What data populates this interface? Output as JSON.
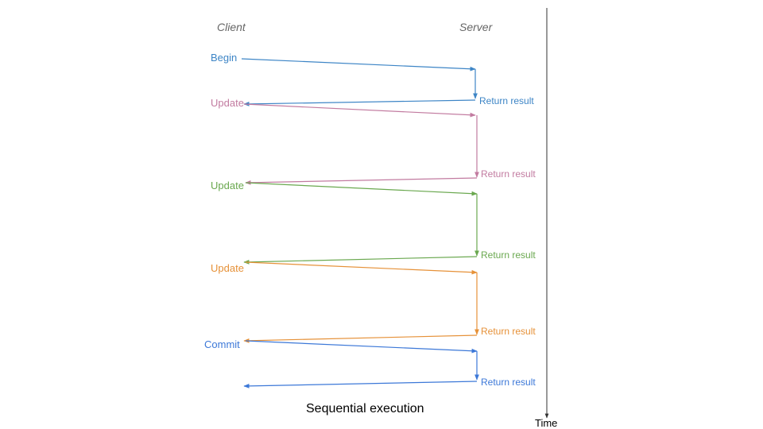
{
  "headers": {
    "client": "Client",
    "server": "Server"
  },
  "caption": "Sequential execution",
  "time_label": "Time",
  "colors": {
    "blue": "#3d85c6",
    "pink": "#c27ba0",
    "green": "#6aa84f",
    "orange": "#e69138",
    "commit": "#3c78d8"
  },
  "steps": [
    {
      "client_label": "Begin",
      "server_label": "Return result",
      "color": "#3d85c6"
    },
    {
      "client_label": "Update",
      "server_label": "Return result",
      "color": "#c27ba0"
    },
    {
      "client_label": "Update",
      "server_label": "Return result",
      "color": "#6aa84f"
    },
    {
      "client_label": "Update",
      "server_label": "Return result",
      "color": "#e69138"
    },
    {
      "client_label": "Commit",
      "server_label": "Return result",
      "color": "#3c78d8"
    }
  ]
}
